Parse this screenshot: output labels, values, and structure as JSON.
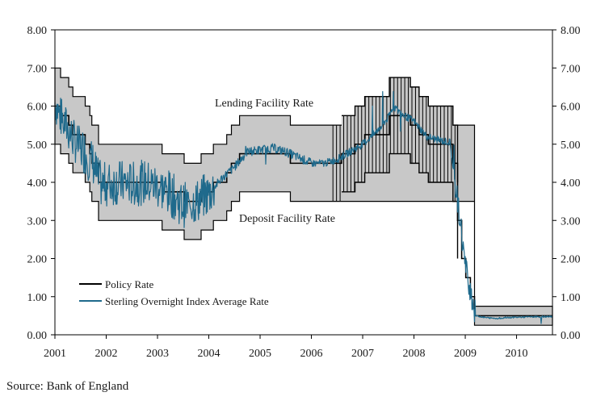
{
  "chart_data": {
    "type": "line",
    "xlim": [
      2001.0,
      2010.7
    ],
    "ylim": [
      0,
      8
    ],
    "x_ticks": [
      "2001",
      "2002",
      "2003",
      "2004",
      "2005",
      "2006",
      "2007",
      "2008",
      "2009",
      "2010"
    ],
    "y_ticks": [
      "0.00",
      "1.00",
      "2.00",
      "3.00",
      "4.00",
      "5.00",
      "6.00",
      "7.00",
      "8.00"
    ],
    "grid": false,
    "legend_placement": "bottom-left",
    "annotations": [
      "Lending Facility Rate",
      "Deposit Facility Rate"
    ],
    "corridor_color": "#c8c8c8",
    "policy_color": "#000000",
    "sonia_color": "#1f6a8c",
    "series": [
      {
        "name": "Policy Rate",
        "x": [
          2001.0,
          2001.11,
          2001.27,
          2001.35,
          2001.59,
          2001.68,
          2001.72,
          2001.85,
          2001.92,
          2003.09,
          2003.52,
          2003.85,
          2004.09,
          2004.35,
          2004.44,
          2004.6,
          2005.59,
          2006.59,
          2006.85,
          2007.04,
          2007.52,
          2007.93,
          2008.1,
          2008.28,
          2008.76,
          2008.85,
          2008.93,
          2009.01,
          2009.1,
          2009.18,
          2010.7
        ],
        "values": [
          6.0,
          5.75,
          5.5,
          5.25,
          5.0,
          4.75,
          4.5,
          4.0,
          4.0,
          3.75,
          3.5,
          3.75,
          4.0,
          4.25,
          4.5,
          4.75,
          4.5,
          4.75,
          5.0,
          5.25,
          5.75,
          5.5,
          5.25,
          5.0,
          4.5,
          3.0,
          2.0,
          1.5,
          1.0,
          0.5,
          0.5
        ]
      },
      {
        "name": "Lending Facility Rate",
        "x": [
          2001.0,
          2001.11,
          2001.27,
          2001.35,
          2001.59,
          2001.68,
          2001.72,
          2001.85,
          2001.92,
          2003.09,
          2003.52,
          2003.85,
          2004.09,
          2004.35,
          2004.44,
          2004.6,
          2005.59,
          2006.38,
          2009.18,
          2010.7
        ],
        "values": [
          7.0,
          6.75,
          6.5,
          6.25,
          6.0,
          5.75,
          5.5,
          5.0,
          5.0,
          4.75,
          4.5,
          4.75,
          5.0,
          5.25,
          5.5,
          5.75,
          5.5,
          5.5,
          0.75,
          0.75
        ]
      },
      {
        "name": "Deposit Facility Rate",
        "x": [
          2001.0,
          2001.11,
          2001.27,
          2001.35,
          2001.59,
          2001.68,
          2001.72,
          2001.85,
          2001.92,
          2003.09,
          2003.52,
          2003.85,
          2004.09,
          2004.35,
          2004.44,
          2004.6,
          2005.59,
          2006.38,
          2009.18,
          2010.7
        ],
        "values": [
          5.0,
          4.75,
          4.5,
          4.25,
          4.0,
          3.75,
          3.5,
          3.0,
          3.0,
          2.75,
          2.5,
          2.75,
          3.0,
          3.25,
          3.5,
          3.75,
          3.5,
          3.5,
          0.25,
          0.25
        ]
      },
      {
        "name": "Sterling Overnight Index Average Rate",
        "x": [
          2001.0,
          2001.08,
          2001.16,
          2001.25,
          2001.33,
          2001.42,
          2001.5,
          2001.58,
          2001.67,
          2001.75,
          2001.83,
          2001.92,
          2002.0,
          2002.25,
          2002.5,
          2002.75,
          2003.0,
          2003.25,
          2003.5,
          2003.75,
          2004.0,
          2004.25,
          2004.5,
          2004.75,
          2005.0,
          2005.25,
          2005.5,
          2005.75,
          2006.0,
          2006.25,
          2006.5,
          2006.75,
          2007.0,
          2007.25,
          2007.5,
          2007.6,
          2007.75,
          2008.0,
          2008.25,
          2008.5,
          2008.7,
          2008.8,
          2008.9,
          2009.0,
          2009.1,
          2009.2,
          2009.4,
          2009.6,
          2009.8,
          2010.0,
          2010.3,
          2010.7
        ],
        "values": [
          6.1,
          5.8,
          5.6,
          5.4,
          5.2,
          5.0,
          4.9,
          4.8,
          4.6,
          4.5,
          4.1,
          3.9,
          3.95,
          4.0,
          3.95,
          4.0,
          3.9,
          3.7,
          3.4,
          3.5,
          3.7,
          4.1,
          4.4,
          4.8,
          4.85,
          4.9,
          4.8,
          4.65,
          4.5,
          4.5,
          4.6,
          4.8,
          5.0,
          5.3,
          5.7,
          6.0,
          5.8,
          5.6,
          5.2,
          5.1,
          5.05,
          4.0,
          3.0,
          1.8,
          1.2,
          0.5,
          0.45,
          0.43,
          0.45,
          0.46,
          0.47,
          0.48
        ]
      }
    ]
  },
  "source": "Source: Bank of England"
}
